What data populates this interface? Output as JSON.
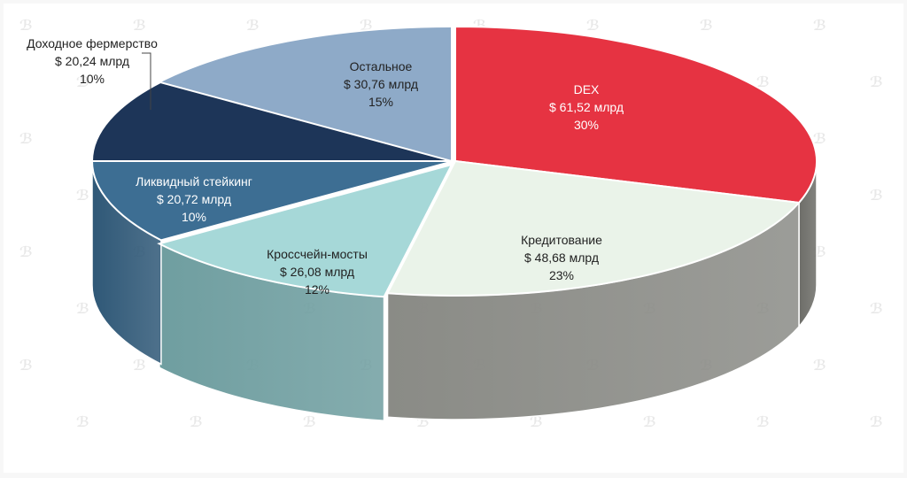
{
  "chart_data": {
    "type": "pie",
    "style": "3d-exploded-perspective",
    "title": "",
    "unit_prefix": "$",
    "unit_suffix": "млрд",
    "slices": [
      {
        "name": "DEX",
        "value_label": "$ 61,52 млрд",
        "value": 61.52,
        "percent": 30,
        "percent_label": "30%",
        "color": "#e63342",
        "side_color": "#6d6d68",
        "text_color": "#ffffff"
      },
      {
        "name": "Кредитование",
        "value_label": "$ 48,68 млрд",
        "value": 48.68,
        "percent": 23,
        "percent_label": "23%",
        "color": "#eaf3e9",
        "side_color": "#8a8b86",
        "text_color": "#222222"
      },
      {
        "name": "Кроссчейн-мосты",
        "value_label": "$ 26,08 млрд",
        "value": 26.08,
        "percent": 12,
        "percent_label": "12%",
        "color": "#a6d8d8",
        "side_color": "#6f9ea0",
        "text_color": "#222222"
      },
      {
        "name": "Ликвидный стейкинг",
        "value_label": "$ 20,72 млрд",
        "value": 20.72,
        "percent": 10,
        "percent_label": "10%",
        "color": "#3d6e93",
        "side_color": "#2f5877",
        "text_color": "#ffffff"
      },
      {
        "name": "Доходное фермерство",
        "value_label": "$ 20,24 млрд",
        "value": 20.24,
        "percent": 10,
        "percent_label": "10%",
        "color": "#1d3558",
        "side_color": "#162a46",
        "text_color": "#222222",
        "label_outside": true
      },
      {
        "name": "Остальное",
        "value_label": "$ 30,76 млрд",
        "value": 30.76,
        "percent": 15,
        "percent_label": "15%",
        "color": "#8eaac8",
        "side_color": "#6e88a4",
        "text_color": "#222222"
      }
    ],
    "legend": "none",
    "watermark_glyph": "ℬ"
  }
}
